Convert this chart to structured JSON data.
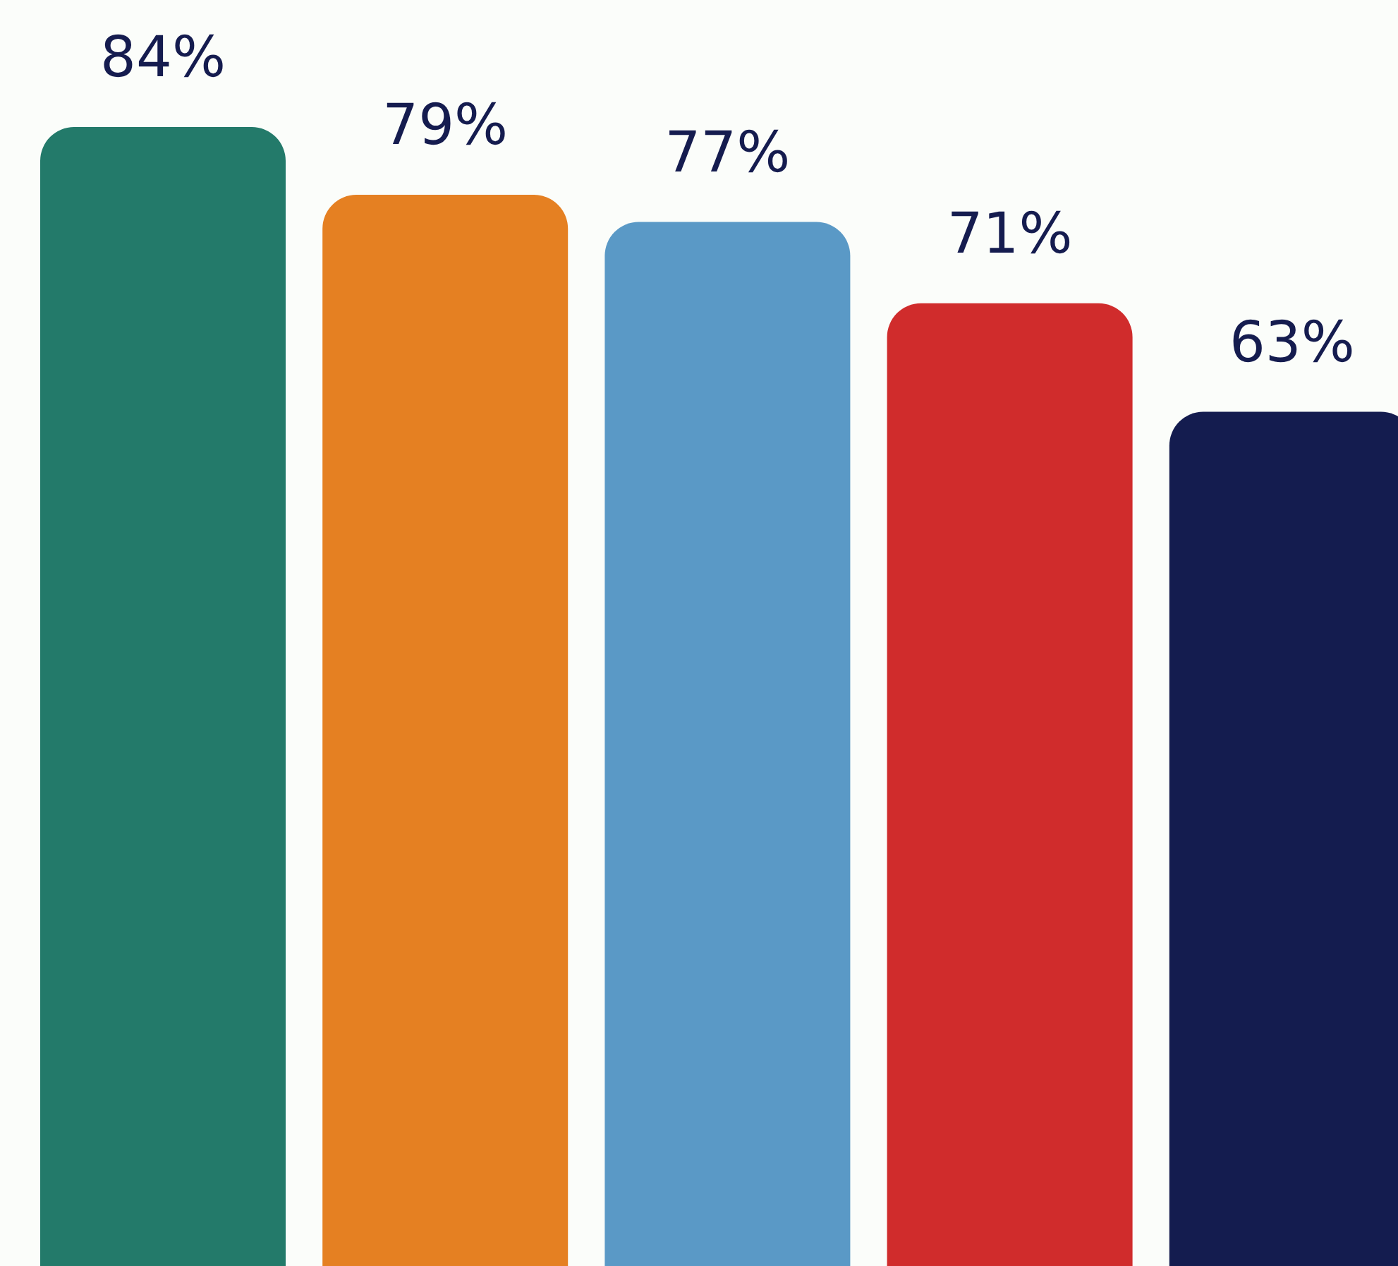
{
  "chart_data": {
    "type": "bar",
    "categories": [
      null,
      null,
      null,
      null,
      null
    ],
    "values": [
      84,
      79,
      77,
      71,
      63
    ],
    "colors": [
      "#237a6a",
      "#e58022",
      "#5a99c6",
      "#d02c2c",
      "#141c4f"
    ],
    "value_labels": [
      "84%",
      "79%",
      "77%",
      "71%",
      "63%"
    ]
  }
}
